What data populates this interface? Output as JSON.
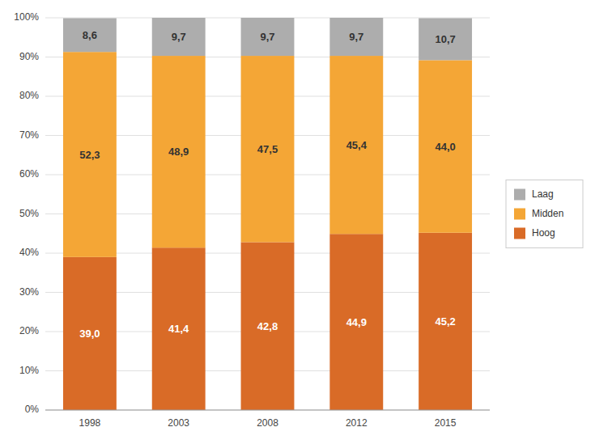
{
  "chart_data": {
    "type": "bar",
    "stacked": true,
    "categories": [
      "1998",
      "2003",
      "2008",
      "2012",
      "2015"
    ],
    "series": [
      {
        "name": "Hoog",
        "color": "#D96B27",
        "values": [
          39.0,
          41.4,
          42.8,
          44.9,
          45.2
        ],
        "value_labels": [
          "39,0",
          "41,4",
          "42,8",
          "44,9",
          "45,2"
        ]
      },
      {
        "name": "Midden",
        "color": "#F4A636",
        "values": [
          52.3,
          48.9,
          47.5,
          45.4,
          44.0
        ],
        "value_labels": [
          "52,3",
          "48,9",
          "47,5",
          "45,4",
          "44,0"
        ]
      },
      {
        "name": "Laag",
        "color": "#ADADAD",
        "values": [
          8.6,
          9.7,
          9.7,
          9.7,
          10.7
        ],
        "value_labels": [
          "8,6",
          "9,7",
          "9,7",
          "9,7",
          "10,7"
        ]
      }
    ],
    "ylim": [
      0,
      100
    ],
    "yticks": [
      {
        "value": 0,
        "label": "0%"
      },
      {
        "value": 10,
        "label": "10%"
      },
      {
        "value": 20,
        "label": "20%"
      },
      {
        "value": 30,
        "label": "30%"
      },
      {
        "value": 40,
        "label": "40%"
      },
      {
        "value": 50,
        "label": "50%"
      },
      {
        "value": 60,
        "label": "60%"
      },
      {
        "value": 70,
        "label": "70%"
      },
      {
        "value": 80,
        "label": "80%"
      },
      {
        "value": 90,
        "label": "90%"
      },
      {
        "value": 100,
        "label": "100%"
      }
    ],
    "grid": true,
    "legend": "right",
    "data_labels": true
  }
}
